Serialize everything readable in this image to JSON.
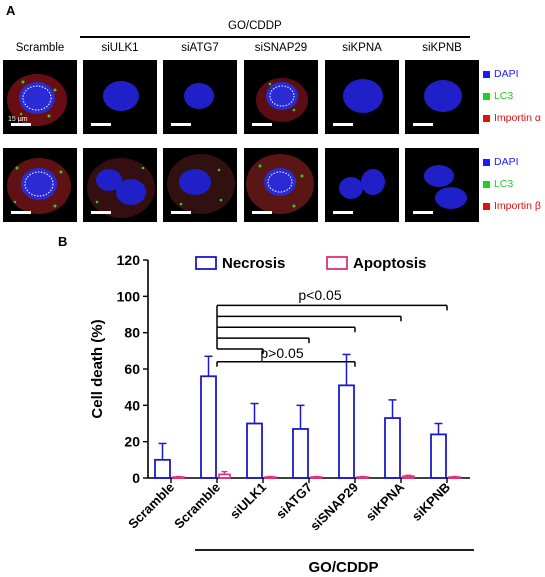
{
  "panel_a": {
    "letter": "A",
    "condition_label": "GO/CDDP",
    "column_labels": [
      "Scramble",
      "siULK1",
      "siATG7",
      "siSNAP29",
      "siKPNA",
      "siKPNB"
    ],
    "scale_text": "15 μm",
    "row1_legend": [
      {
        "label": "DAPI",
        "color": "#1a1aff"
      },
      {
        "label": "LC3",
        "color": "#22cc22"
      },
      {
        "label": "Importin α",
        "color": "#dd1111"
      }
    ],
    "row2_legend": [
      {
        "label": "DAPI",
        "color": "#1a1aff"
      },
      {
        "label": "LC3",
        "color": "#22cc22"
      },
      {
        "label": "Importin β",
        "color": "#dd1111"
      }
    ]
  },
  "panel_b": {
    "letter": "B",
    "condition_label": "GO/CDDP",
    "stats": {
      "p_significant": "p<0.05",
      "p_not_significant": "p>0.05"
    }
  },
  "chart_data": {
    "type": "bar",
    "categories": [
      "Scramble",
      "Scramble",
      "siULK1",
      "siATG7",
      "siSNAP29",
      "siKPNA",
      "siKPNB"
    ],
    "series": [
      {
        "name": "Necrosis",
        "color": "#1a1acc",
        "values": [
          10,
          56,
          30,
          27,
          51,
          33,
          24
        ],
        "errors": [
          9,
          11,
          11,
          13,
          17,
          10,
          6
        ]
      },
      {
        "name": "Apoptosis",
        "color": "#e0307a",
        "values": [
          0.5,
          2,
          0.5,
          0.5,
          0.5,
          1,
          0.5
        ],
        "errors": [
          0.3,
          1.5,
          0.3,
          0.3,
          0.3,
          0.5,
          0.3
        ]
      }
    ],
    "ylabel": "Cell death (%)",
    "ylim": [
      0,
      120
    ],
    "yticks": [
      0,
      20,
      40,
      60,
      80,
      100,
      120
    ],
    "legend_position": "top"
  }
}
